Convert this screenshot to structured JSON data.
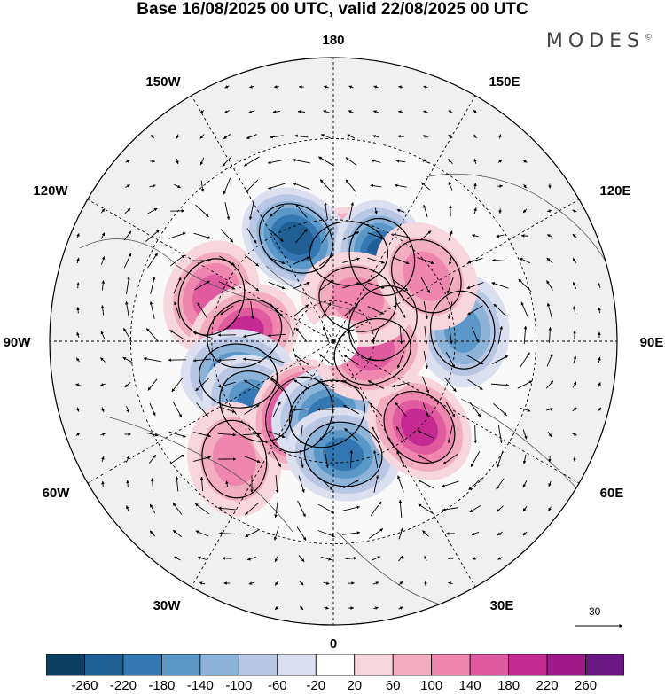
{
  "title": "Base 16/08/2025 00 UTC, valid 22/08/2025 00 UTC",
  "logo": "MODES",
  "logo_mark": "©",
  "longitude_labels": {
    "lon_180": "180",
    "lon_150E": "150E",
    "lon_120E": "120E",
    "lon_90E": "90E",
    "lon_60E": "60E",
    "lon_30E": "30E",
    "lon_0": "0",
    "lon_30W": "30W",
    "lon_60W": "60W",
    "lon_90W": "90W",
    "lon_120W": "120W",
    "lon_150W": "150W"
  },
  "vector_scale": "30",
  "colorbar": {
    "colors": [
      "#0d3f63",
      "#1f5f93",
      "#3478b3",
      "#5b98c8",
      "#8db3d9",
      "#b8c7e3",
      "#dcdff0",
      "#ffffff",
      "#f7d6dd",
      "#f2aec0",
      "#ee86ad",
      "#e05aa0",
      "#c42a92",
      "#9e1a8a",
      "#6a1680"
    ],
    "labels": [
      "-260",
      "-220",
      "-180",
      "-140",
      "-100",
      "-60",
      "-20",
      "20",
      "60",
      "100",
      "140",
      "180",
      "220",
      "260"
    ]
  },
  "anomalies": [
    {
      "lon": 170,
      "colat": 22,
      "value": 200
    },
    {
      "lon": -160,
      "colat": 27,
      "value": -220
    },
    {
      "lon": 150,
      "colat": 24,
      "value": -220
    },
    {
      "lon": -110,
      "colat": 32,
      "value": 140
    },
    {
      "lon": -95,
      "colat": 22,
      "value": 180
    },
    {
      "lon": -70,
      "colat": 25,
      "value": -160
    },
    {
      "lon": -50,
      "colat": 25,
      "value": -160
    },
    {
      "lon": -40,
      "colat": 38,
      "value": 100
    },
    {
      "lon": -25,
      "colat": 20,
      "value": 240
    },
    {
      "lon": -5,
      "colat": 18,
      "value": -180
    },
    {
      "lon": 5,
      "colat": 28,
      "value": -160
    },
    {
      "lon": 45,
      "colat": 30,
      "value": 160
    },
    {
      "lon": 95,
      "colat": 32,
      "value": -140
    },
    {
      "lon": 110,
      "colat": 13,
      "value": 120
    },
    {
      "lon": 75,
      "colat": 10,
      "value": 140
    },
    {
      "lon": 150,
      "colat": 12,
      "value": 80
    },
    {
      "lon": 125,
      "colat": 28,
      "value": 80
    }
  ]
}
